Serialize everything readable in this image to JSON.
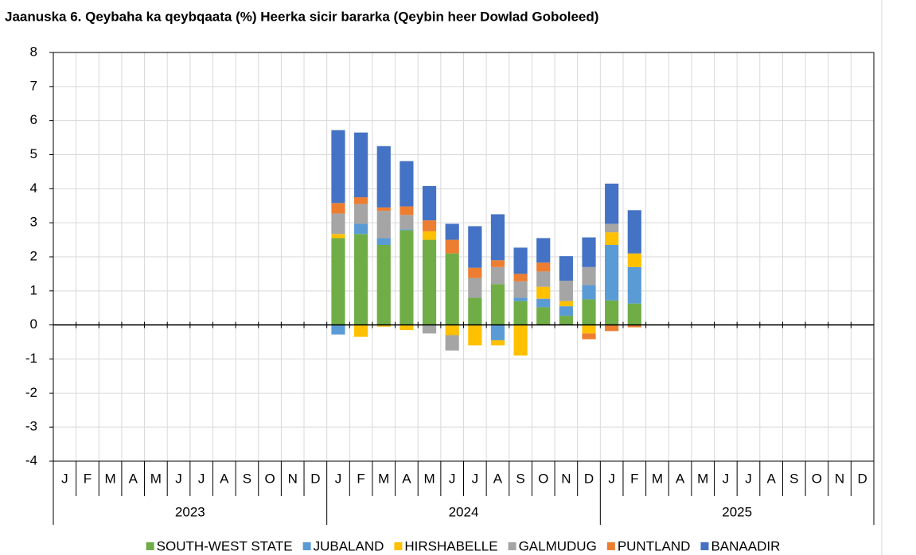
{
  "chart_data": {
    "type": "stacked_bar",
    "title": "Jaanuska 6. Qeybaha ka qeybqaata (%) Heerka sicir bararka (Qeybin heer Dowlad Goboleed)",
    "categories": [
      "J",
      "F",
      "M",
      "A",
      "M",
      "J",
      "J",
      "A",
      "S",
      "O",
      "N",
      "D",
      "J",
      "F",
      "M",
      "A",
      "M",
      "J",
      "J",
      "A",
      "S",
      "O",
      "N",
      "D",
      "J",
      "F",
      "M",
      "A",
      "M",
      "J",
      "J",
      "A",
      "S",
      "O",
      "N",
      "D"
    ],
    "groups": [
      "2023",
      "2024",
      "2025"
    ],
    "ylim": [
      -4,
      8
    ],
    "yticks": [
      -4,
      -3,
      -2,
      -1,
      0,
      1,
      2,
      3,
      4,
      5,
      6,
      7,
      8
    ],
    "grid": true,
    "legend": "bottom",
    "series": [
      {
        "name": "SOUTH-WEST STATE",
        "color": "#70ad47",
        "values": [
          null,
          null,
          null,
          null,
          null,
          null,
          null,
          null,
          null,
          null,
          null,
          null,
          2.55,
          2.67,
          2.35,
          2.78,
          2.5,
          2.1,
          0.8,
          1.2,
          0.7,
          0.52,
          0.27,
          0.75,
          0.72,
          0.63,
          null,
          null,
          null,
          null,
          null,
          null,
          null,
          null,
          null,
          null
        ]
      },
      {
        "name": "JUBALAND",
        "color": "#5b9bd5",
        "values": [
          null,
          null,
          null,
          null,
          null,
          null,
          null,
          null,
          null,
          null,
          null,
          null,
          -0.28,
          0.3,
          0.2,
          0.03,
          0,
          0,
          0,
          -0.45,
          0.1,
          0.25,
          0.28,
          0.42,
          1.63,
          1.07,
          null,
          null,
          null,
          null,
          null,
          null,
          null,
          null,
          null,
          null
        ]
      },
      {
        "name": "HIRSHABELLE",
        "color": "#ffc000",
        "values": [
          null,
          null,
          null,
          null,
          null,
          null,
          null,
          null,
          null,
          null,
          null,
          null,
          0.12,
          -0.35,
          -0.05,
          -0.15,
          0.25,
          -0.3,
          -0.6,
          -0.15,
          -0.9,
          0.35,
          0.15,
          -0.25,
          0.37,
          0.4,
          null,
          null,
          null,
          null,
          null,
          null,
          null,
          null,
          null,
          null
        ]
      },
      {
        "name": "GALMUDUG",
        "color": "#a5a5a5",
        "values": [
          null,
          null,
          null,
          null,
          null,
          null,
          null,
          null,
          null,
          null,
          null,
          null,
          0.6,
          0.58,
          0.8,
          0.42,
          -0.25,
          -0.45,
          0.58,
          0.5,
          0.48,
          0.45,
          0.6,
          0.53,
          0.25,
          0,
          null,
          null,
          null,
          null,
          null,
          null,
          null,
          null,
          null,
          null
        ]
      },
      {
        "name": "PUNTLAND",
        "color": "#ed7d31",
        "values": [
          null,
          null,
          null,
          null,
          null,
          null,
          null,
          null,
          null,
          null,
          null,
          null,
          0.31,
          0.2,
          0.1,
          0.25,
          0.32,
          0.4,
          0.3,
          0.2,
          0.22,
          0.26,
          0,
          -0.17,
          -0.18,
          -0.07,
          null,
          null,
          null,
          null,
          null,
          null,
          null,
          null,
          null,
          null
        ]
      },
      {
        "name": "BANAADIR",
        "color": "#4472c4",
        "values": [
          null,
          null,
          null,
          null,
          null,
          null,
          null,
          null,
          null,
          null,
          null,
          null,
          2.14,
          1.9,
          1.8,
          1.33,
          1.01,
          0.47,
          1.22,
          1.35,
          0.77,
          0.72,
          0.72,
          0.87,
          1.18,
          1.27,
          null,
          null,
          null,
          null,
          null,
          null,
          null,
          null,
          null,
          null
        ]
      }
    ]
  }
}
